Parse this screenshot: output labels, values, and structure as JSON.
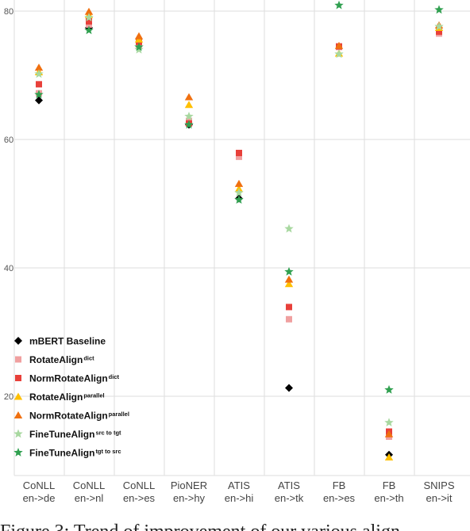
{
  "chart_data": {
    "type": "scatter",
    "title": "",
    "xlabel": "",
    "ylabel": "",
    "ylim": [
      8,
      82
    ],
    "yticks": [
      20,
      40,
      60,
      80
    ],
    "grid": {
      "horizontal": true,
      "vertical": true
    },
    "legend_position": "bottom-left",
    "categories": [
      {
        "top": "CoNLL",
        "bottom": "en->de"
      },
      {
        "top": "CoNLL",
        "bottom": "en->nl"
      },
      {
        "top": "CoNLL",
        "bottom": "en->es"
      },
      {
        "top": "PioNER",
        "bottom": "en->hy"
      },
      {
        "top": "ATIS",
        "bottom": "en->hi"
      },
      {
        "top": "ATIS",
        "bottom": "en->tk"
      },
      {
        "top": "FB",
        "bottom": "en->es"
      },
      {
        "top": "FB",
        "bottom": "en->th"
      },
      {
        "top": "SNIPS",
        "bottom": "en->it"
      }
    ],
    "series": [
      {
        "name": "mBERT Baseline",
        "sup": "",
        "marker": "diamond",
        "color": "#000000",
        "values": [
          66.1,
          77.4,
          null,
          62.3,
          50.8,
          21.3,
          null,
          10.9,
          null
        ]
      },
      {
        "name": "RotateAlign",
        "sup": "dict",
        "marker": "square",
        "color": "#f0a0a0",
        "values": [
          67.2,
          77.9,
          74.6,
          62.9,
          57.3,
          32.0,
          74.4,
          13.7,
          76.5
        ]
      },
      {
        "name": "NormRotateAlign",
        "sup": "dict",
        "marker": "square",
        "color": "#e8403a",
        "values": [
          68.6,
          78.4,
          75.2,
          62.5,
          57.9,
          33.9,
          74.5,
          14.5,
          76.8
        ]
      },
      {
        "name": "RotateAlign",
        "sup": "parallel",
        "marker": "triangle",
        "color": "#ffc000",
        "values": [
          70.5,
          79.4,
          75.6,
          65.4,
          52.3,
          37.5,
          73.4,
          10.5,
          77.4
        ]
      },
      {
        "name": "NormRotateAlign",
        "sup": "parallel",
        "marker": "triangle",
        "color": "#f07010",
        "values": [
          71.2,
          79.9,
          76.1,
          66.6,
          53.1,
          38.2,
          74.6,
          14.1,
          77.8
        ]
      },
      {
        "name": "FineTuneAlign",
        "sup": "src to tgt",
        "marker": "star",
        "color": "#a8d8a0",
        "values": [
          70.2,
          79.0,
          74.0,
          63.6,
          51.7,
          46.1,
          73.3,
          15.9,
          77.6
        ]
      },
      {
        "name": "FineTuneAlign",
        "sup": "tgt to src",
        "marker": "star",
        "color": "#30a050",
        "values": [
          67.0,
          77.0,
          74.4,
          62.3,
          50.6,
          39.4,
          80.9,
          21.0,
          80.2
        ]
      }
    ]
  },
  "caption": "Figure 3:  Trend of improvement of our various align-"
}
